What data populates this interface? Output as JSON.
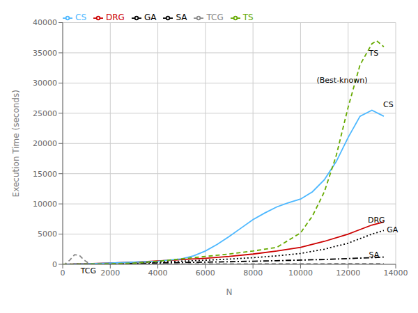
{
  "chart_data": {
    "type": "line",
    "xlabel": "N",
    "ylabel": "Execution Time (seconds)",
    "xlim": [
      0,
      14000
    ],
    "ylim": [
      0,
      40000
    ],
    "xticks": [
      0,
      2000,
      4000,
      6000,
      8000,
      10000,
      12000,
      14000
    ],
    "yticks": [
      0,
      5000,
      10000,
      15000,
      20000,
      25000,
      30000,
      35000,
      40000
    ],
    "grid": true,
    "legend": "upper left",
    "series": [
      {
        "name": "SA",
        "color": "#000000",
        "line_style": "dashdot",
        "x": [
          0,
          1000,
          2000,
          3000,
          4000,
          5000,
          6000,
          7000,
          8000,
          9000,
          10000,
          11000,
          12000,
          13000,
          13500
        ],
        "values": [
          0,
          60,
          100,
          160,
          220,
          290,
          360,
          430,
          510,
          600,
          700,
          800,
          950,
          1100,
          1200
        ]
      },
      {
        "name": "GA",
        "color": "#000000",
        "line_style": "dotted",
        "x": [
          0,
          1000,
          2000,
          3000,
          4000,
          5000,
          6000,
          7000,
          8000,
          9000,
          10000,
          11000,
          12000,
          13000,
          13500
        ],
        "values": [
          0,
          80,
          150,
          250,
          380,
          520,
          680,
          860,
          1100,
          1400,
          1800,
          2500,
          3500,
          5000,
          5600
        ]
      },
      {
        "name": "DRG",
        "color": "#cc0000",
        "line_style": "solid",
        "x": [
          0,
          1000,
          2000,
          3000,
          4000,
          5000,
          6000,
          7000,
          8000,
          9000,
          10000,
          11000,
          12000,
          13000,
          13500
        ],
        "values": [
          0,
          100,
          200,
          360,
          560,
          780,
          1000,
          1300,
          1700,
          2200,
          2800,
          3800,
          5000,
          6500,
          7000
        ]
      },
      {
        "name": "TCG",
        "color": "#888888",
        "line_style": "dashed",
        "x": [
          0,
          100,
          300,
          500,
          700,
          900,
          1100,
          1500,
          2000,
          3000,
          4000,
          5000,
          6000,
          7000,
          8000,
          9000,
          10000,
          11000,
          12000,
          13000,
          13500
        ],
        "values": [
          0,
          50,
          700,
          1600,
          1500,
          700,
          150,
          20,
          10,
          15,
          30,
          50,
          60,
          70,
          80,
          90,
          100,
          110,
          120,
          130,
          135
        ]
      },
      {
        "name": "CS",
        "color": "#4db8ff",
        "line_style": "solid",
        "x": [
          0,
          1000,
          2000,
          3000,
          4000,
          5000,
          5500,
          6000,
          6500,
          7000,
          7500,
          8000,
          8500,
          9000,
          9500,
          10000,
          10500,
          11000,
          11500,
          12000,
          12500,
          13000,
          13500
        ],
        "values": [
          0,
          80,
          200,
          350,
          500,
          900,
          1400,
          2200,
          3300,
          4600,
          6000,
          7400,
          8500,
          9500,
          10200,
          10800,
          12000,
          14000,
          17000,
          21000,
          24500,
          25500,
          24500
        ]
      },
      {
        "name": "TS",
        "color": "#66aa00",
        "line_style": "dashed",
        "x": [
          0,
          1000,
          2000,
          3000,
          4000,
          5000,
          5500,
          6000,
          7000,
          8000,
          9000,
          10000,
          10500,
          11000,
          11500,
          12000,
          12500,
          13000,
          13200,
          13500
        ],
        "values": [
          0,
          50,
          100,
          200,
          500,
          900,
          1100,
          1300,
          1700,
          2200,
          2800,
          5200,
          8000,
          12000,
          18000,
          26000,
          33000,
          36500,
          37000,
          36000
        ]
      }
    ],
    "annotations": [
      {
        "text": "(Best-known)",
        "x": 10500,
        "y": 30500
      },
      {
        "text": "TS",
        "x": 12700,
        "y": 35000
      },
      {
        "text": "CS",
        "x": 13300,
        "y": 26500
      },
      {
        "text": "DRG",
        "x": 12650,
        "y": 7400
      },
      {
        "text": "GA",
        "x": 13450,
        "y": 5700
      },
      {
        "text": "SA",
        "x": 12700,
        "y": 1600
      },
      {
        "text": "TCG",
        "x": 580,
        "y": -1050
      }
    ]
  }
}
